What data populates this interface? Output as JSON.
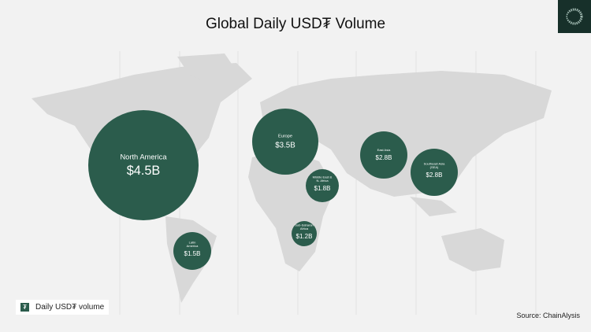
{
  "title": "Global Daily USD₮ Volume",
  "legend": {
    "label": "Daily USD₮ volume",
    "icon": "tether-icon"
  },
  "source": "Source:  ChainAlysis",
  "colors": {
    "bubble": "#2b5c4c",
    "land": "#d8d8d8",
    "background": "#f2f2f2"
  },
  "chart_data": {
    "type": "bubble-map",
    "title": "Global Daily USD₮ Volume",
    "unit": "USD billions",
    "regions": [
      {
        "name": "North America",
        "label": "$4.5B",
        "value": 4.5
      },
      {
        "name": "Europe",
        "label": "$3.5B",
        "value": 3.5
      },
      {
        "name": "East Asia",
        "label": "$2.8B",
        "value": 2.8
      },
      {
        "name": "Southeast Asia (SEA)",
        "label": "$2.8B",
        "value": 2.8
      },
      {
        "name": "Middle East & N. Africa",
        "label": "$1.8B",
        "value": 1.8
      },
      {
        "name": "Sub-Saharan Africa",
        "label": "$1.2B",
        "value": 1.2
      },
      {
        "name": "Latin America",
        "label": "$1.5B",
        "value": 1.5
      }
    ]
  }
}
